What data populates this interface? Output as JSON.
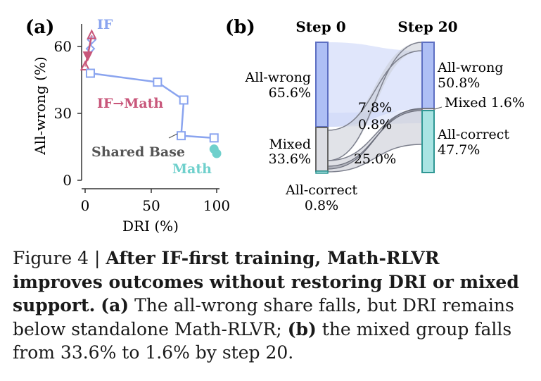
{
  "panel_a": {
    "label": "(a)",
    "chart_data": {
      "type": "line",
      "xlabel": "DRI (%)",
      "ylabel": "All-wrong (%)",
      "xlim": [
        0,
        100
      ],
      "ylim": [
        0,
        70
      ],
      "xticks": [
        "0",
        "50",
        "100"
      ],
      "yticks": [
        "0",
        "30",
        "60"
      ],
      "grid": false,
      "series": [
        {
          "name": "IF",
          "marker": "diamond",
          "color": "#8aa4ef",
          "points": [
            [
              5,
              63
            ],
            [
              4,
              59
            ]
          ]
        },
        {
          "name": "IF→Math",
          "marker": "triangle",
          "color": "#c8567a",
          "points": [
            [
              5,
              65
            ],
            [
              2,
              56
            ],
            [
              0,
              51
            ]
          ]
        },
        {
          "name": "Shared Base",
          "marker": "square",
          "color": "#8aa4ef",
          "points": [
            [
              4,
              48
            ],
            [
              55,
              44
            ],
            [
              75,
              36
            ],
            [
              73,
              20
            ],
            [
              98,
              19
            ]
          ]
        },
        {
          "name": "Math",
          "marker": "circle",
          "color": "#6fd0cc",
          "points": [
            [
              98,
              14
            ],
            [
              100,
              12
            ]
          ]
        }
      ]
    }
  },
  "panel_b": {
    "label": "(b)",
    "chart_data": {
      "type": "sankey",
      "columns": [
        "Step 0",
        "Step 20"
      ],
      "step0_nodes": [
        {
          "name": "All-wrong",
          "value": "65.6%",
          "color": "#aebff5"
        },
        {
          "name": "Mixed",
          "value": "33.6%",
          "color": "#dcdde3"
        },
        {
          "name": "All-correct",
          "value": "0.8%",
          "color": "#a9e4e3"
        }
      ],
      "step20_nodes": [
        {
          "name": "All-wrong",
          "value": "50.8%",
          "color": "#aebff5"
        },
        {
          "name": "Mixed",
          "value": "1.6%",
          "color": "#dcdde3"
        },
        {
          "name": "All-correct",
          "value": "47.7%",
          "color": "#a9e4e3"
        }
      ],
      "flow_labels": [
        "7.8%",
        "0.8%",
        "25.0%"
      ]
    }
  },
  "caption": {
    "prefix": "Figure 4 | ",
    "bold": "After IF-first training, Math-RLVR improves outcomes without restoring DRI or mixed support.",
    "a_label": "(a)",
    "text1": "The all-wrong share falls, but DRI remains below standalone Math-RLVR;",
    "b_label": "(b)",
    "text2": "the mixed group falls from 33.6% to 1.6% by step 20."
  }
}
